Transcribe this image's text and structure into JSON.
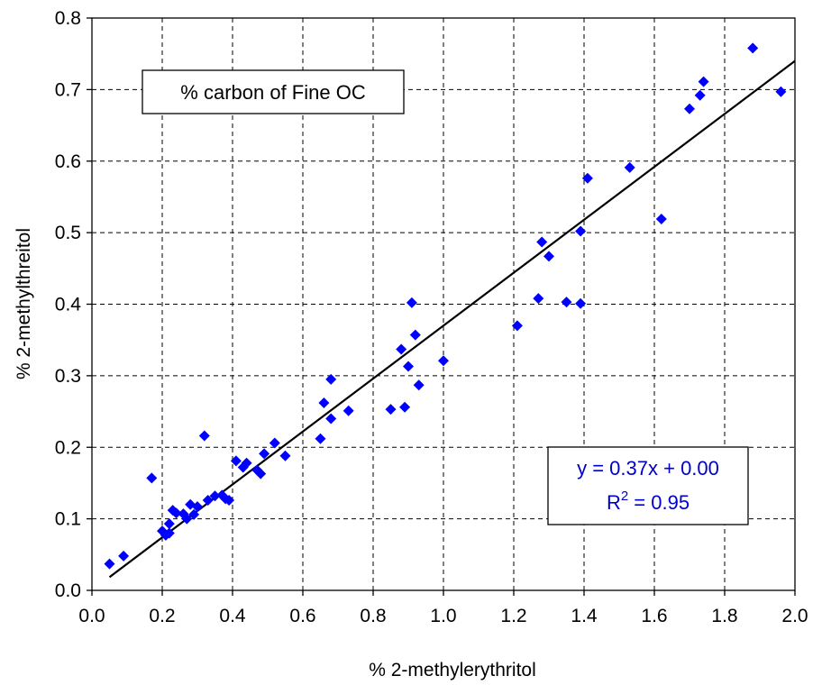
{
  "chart_data": {
    "type": "scatter",
    "xlabel": "% 2-methylerythritol",
    "ylabel": "% 2-methylthreitol",
    "xlim": [
      0.0,
      2.0
    ],
    "ylim": [
      0.0,
      0.8
    ],
    "xticks": [
      "0.0",
      "0.2",
      "0.4",
      "0.6",
      "0.8",
      "1.0",
      "1.2",
      "1.4",
      "1.6",
      "1.8",
      "2.0"
    ],
    "yticks": [
      "0.0",
      "0.1",
      "0.2",
      "0.3",
      "0.4",
      "0.5",
      "0.6",
      "0.7",
      "0.8"
    ],
    "grid": true,
    "box_label": "% carbon of Fine OC",
    "series": [
      {
        "marker": "diamond",
        "color": "#0000ff",
        "points": [
          [
            0.05,
            0.037
          ],
          [
            0.09,
            0.048
          ],
          [
            0.17,
            0.157
          ],
          [
            0.2,
            0.083
          ],
          [
            0.21,
            0.077
          ],
          [
            0.22,
            0.08
          ],
          [
            0.22,
            0.093
          ],
          [
            0.23,
            0.112
          ],
          [
            0.24,
            0.108
          ],
          [
            0.26,
            0.107
          ],
          [
            0.27,
            0.1
          ],
          [
            0.28,
            0.12
          ],
          [
            0.29,
            0.106
          ],
          [
            0.3,
            0.117
          ],
          [
            0.32,
            0.216
          ],
          [
            0.33,
            0.126
          ],
          [
            0.35,
            0.132
          ],
          [
            0.37,
            0.133
          ],
          [
            0.38,
            0.128
          ],
          [
            0.39,
            0.126
          ],
          [
            0.41,
            0.181
          ],
          [
            0.43,
            0.172
          ],
          [
            0.44,
            0.178
          ],
          [
            0.47,
            0.168
          ],
          [
            0.48,
            0.163
          ],
          [
            0.49,
            0.191
          ],
          [
            0.52,
            0.206
          ],
          [
            0.55,
            0.188
          ],
          [
            0.65,
            0.212
          ],
          [
            0.66,
            0.262
          ],
          [
            0.68,
            0.295
          ],
          [
            0.68,
            0.24
          ],
          [
            0.73,
            0.251
          ],
          [
            0.85,
            0.253
          ],
          [
            0.88,
            0.337
          ],
          [
            0.89,
            0.256
          ],
          [
            0.9,
            0.313
          ],
          [
            0.91,
            0.402
          ],
          [
            0.92,
            0.357
          ],
          [
            0.93,
            0.287
          ],
          [
            1.0,
            0.321
          ],
          [
            1.21,
            0.37
          ],
          [
            1.27,
            0.408
          ],
          [
            1.28,
            0.487
          ],
          [
            1.3,
            0.467
          ],
          [
            1.35,
            0.403
          ],
          [
            1.39,
            0.401
          ],
          [
            1.39,
            0.502
          ],
          [
            1.41,
            0.576
          ],
          [
            1.53,
            0.591
          ],
          [
            1.62,
            0.519
          ],
          [
            1.7,
            0.673
          ],
          [
            1.73,
            0.692
          ],
          [
            1.74,
            0.711
          ],
          [
            1.88,
            0.758
          ],
          [
            1.96,
            0.697
          ]
        ]
      }
    ],
    "trendline": {
      "type": "linear",
      "slope": 0.37,
      "intercept": 0.0,
      "x_range": [
        0.05,
        2.0
      ],
      "equation_label": "y = 0.37x + 0.00",
      "r2_base": "R",
      "r2_exp": "2",
      "r2_value": " = 0.95",
      "line_color": "#000000",
      "label_color": "#0000cc"
    }
  }
}
